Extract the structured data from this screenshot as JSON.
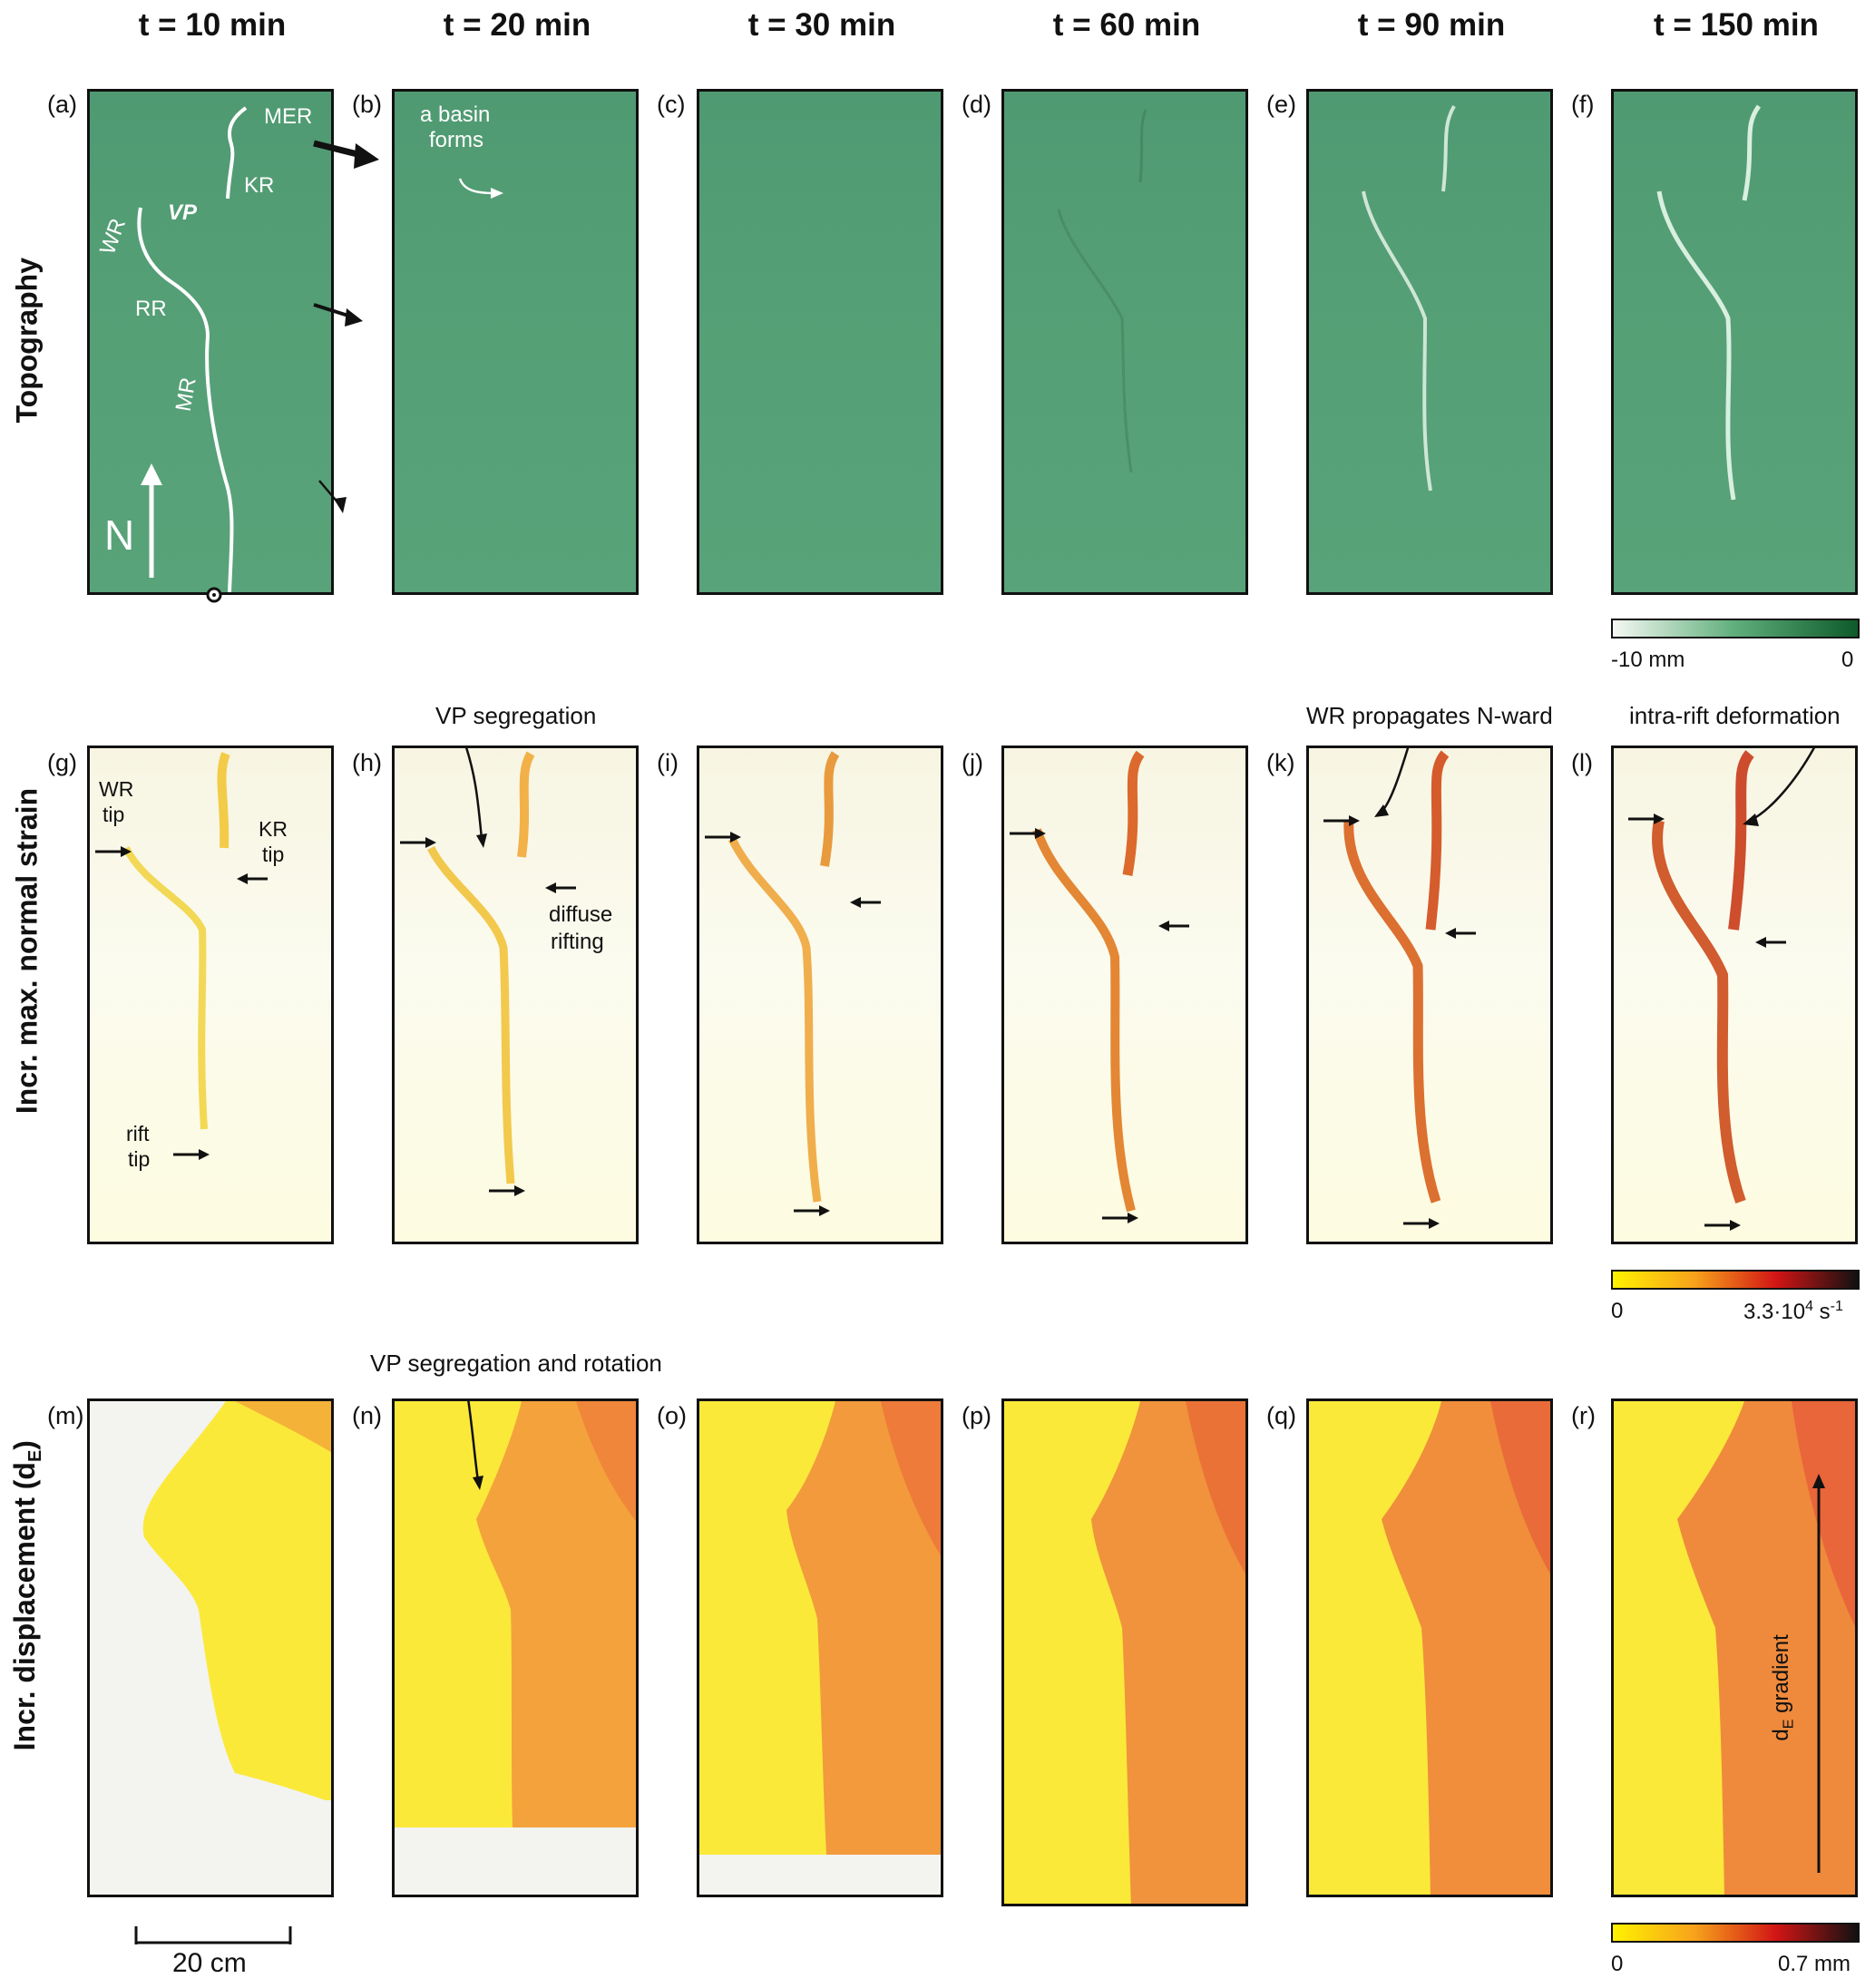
{
  "columns": [
    "t = 10 min",
    "t = 20 min",
    "t = 30 min",
    "t = 60 min",
    "t = 90 min",
    "t = 150 min"
  ],
  "rows": [
    "Topography",
    "Incr. max. normal strain",
    "Incr. displacement (d",
    "E",
    ")"
  ],
  "panel_letters": {
    "topography": [
      "(a)",
      "(b)",
      "(c)",
      "(d)",
      "(e)",
      "(f)"
    ],
    "strain": [
      "(g)",
      "(h)",
      "(i)",
      "(j)",
      "(k)",
      "(l)"
    ],
    "displacement": [
      "(m)",
      "(n)",
      "(o)",
      "(p)",
      "(q)",
      "(r)"
    ]
  },
  "annotations": {
    "mer": "MER",
    "kr": "KR",
    "vp": "VP",
    "wr": "WR",
    "rr": "RR",
    "mr": "MR",
    "north": "N",
    "basin_line1": "a basin",
    "basin_line2": "forms",
    "wr_tip_1": "WR",
    "wr_tip_2": "tip",
    "kr_tip_1": "KR",
    "kr_tip_2": "tip",
    "rift_tip_1": "rift",
    "rift_tip_2": "tip",
    "vp_segregation": "VP segregation",
    "diffuse_1": "diffuse",
    "diffuse_2": "rifting",
    "wr_propagates": "WR propagates N-ward",
    "intra_rift": "intra-rift deformation",
    "vp_seg_rotation": "VP segregation and rotation",
    "de_gradient_pre": "d",
    "de_gradient_sub": "E",
    "de_gradient_post": " gradient",
    "scale_bar": "20 cm"
  },
  "colorbars": {
    "topography": {
      "min": "-10 mm",
      "max": "0",
      "colors": [
        "#f4f8f2",
        "#5fae7b",
        "#0e5a2a"
      ]
    },
    "strain": {
      "min": "0",
      "max_base": "3.3·10",
      "max_exp": "4",
      "max_unit": " s",
      "max_unit_exp": "-1",
      "colors": [
        "#fff200",
        "#f7a21b",
        "#d21515",
        "#111111"
      ]
    },
    "displacement": {
      "min": "0",
      "max": "0.7 mm",
      "colors": [
        "#fff200",
        "#f7a21b",
        "#d21515",
        "#111111"
      ]
    }
  }
}
